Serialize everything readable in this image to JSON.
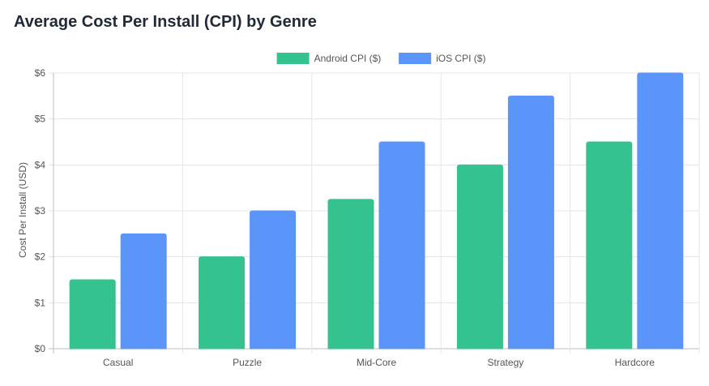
{
  "chart_data": {
    "type": "bar",
    "title": "Average Cost Per Install (CPI) by Genre",
    "xlabel": "",
    "ylabel": "Cost Per Install (USD)",
    "categories": [
      "Casual",
      "Puzzle",
      "Mid-Core",
      "Strategy",
      "Hardcore"
    ],
    "series": [
      {
        "name": "Android CPI ($)",
        "values": [
          1.5,
          2.0,
          3.25,
          4.0,
          4.5
        ],
        "color": "#34c38f"
      },
      {
        "name": "iOS CPI ($)",
        "values": [
          2.5,
          3.0,
          4.5,
          5.5,
          6.0
        ],
        "color": "#5b95f9"
      }
    ],
    "ylim": [
      0,
      6
    ],
    "yticks": [
      "$0",
      "$1",
      "$2",
      "$3",
      "$4",
      "$5",
      "$6"
    ],
    "grid": true,
    "legend": "top-center"
  }
}
